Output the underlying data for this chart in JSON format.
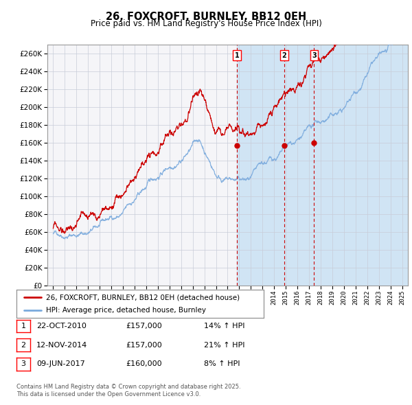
{
  "title": "26, FOXCROFT, BURNLEY, BB12 0EH",
  "subtitle": "Price paid vs. HM Land Registry's House Price Index (HPI)",
  "legend_property": "26, FOXCROFT, BURNLEY, BB12 0EH (detached house)",
  "legend_hpi": "HPI: Average price, detached house, Burnley",
  "footnote1": "Contains HM Land Registry data © Crown copyright and database right 2025.",
  "footnote2": "This data is licensed under the Open Government Licence v3.0.",
  "sales": [
    {
      "num": 1,
      "date": "22-OCT-2010",
      "price": 157000,
      "pct": "14%",
      "dir": "↑"
    },
    {
      "num": 2,
      "date": "12-NOV-2014",
      "price": 157000,
      "pct": "21%",
      "dir": "↑"
    },
    {
      "num": 3,
      "date": "09-JUN-2017",
      "price": 160000,
      "pct": "8%",
      "dir": "↑"
    }
  ],
  "sale_dates_decimal": [
    2010.81,
    2014.87,
    2017.44
  ],
  "sale_prices": [
    157000,
    157000,
    160000
  ],
  "ylim": [
    0,
    270000
  ],
  "yticks": [
    0,
    20000,
    40000,
    60000,
    80000,
    100000,
    120000,
    140000,
    160000,
    180000,
    200000,
    220000,
    240000,
    260000
  ],
  "xlim_start": 1994.5,
  "xlim_end": 2025.5,
  "color_property": "#cc0000",
  "color_hpi": "#7aaadd",
  "color_background_plot": "#e8f0f8",
  "color_background_shaded": "#d0e4f4",
  "color_grid": "#c8ccd8",
  "vline_color": "#cc0000",
  "shade_start": 2010.81,
  "shade_end": 2025.5,
  "hpi_seed": 42,
  "prop_seed": 99
}
